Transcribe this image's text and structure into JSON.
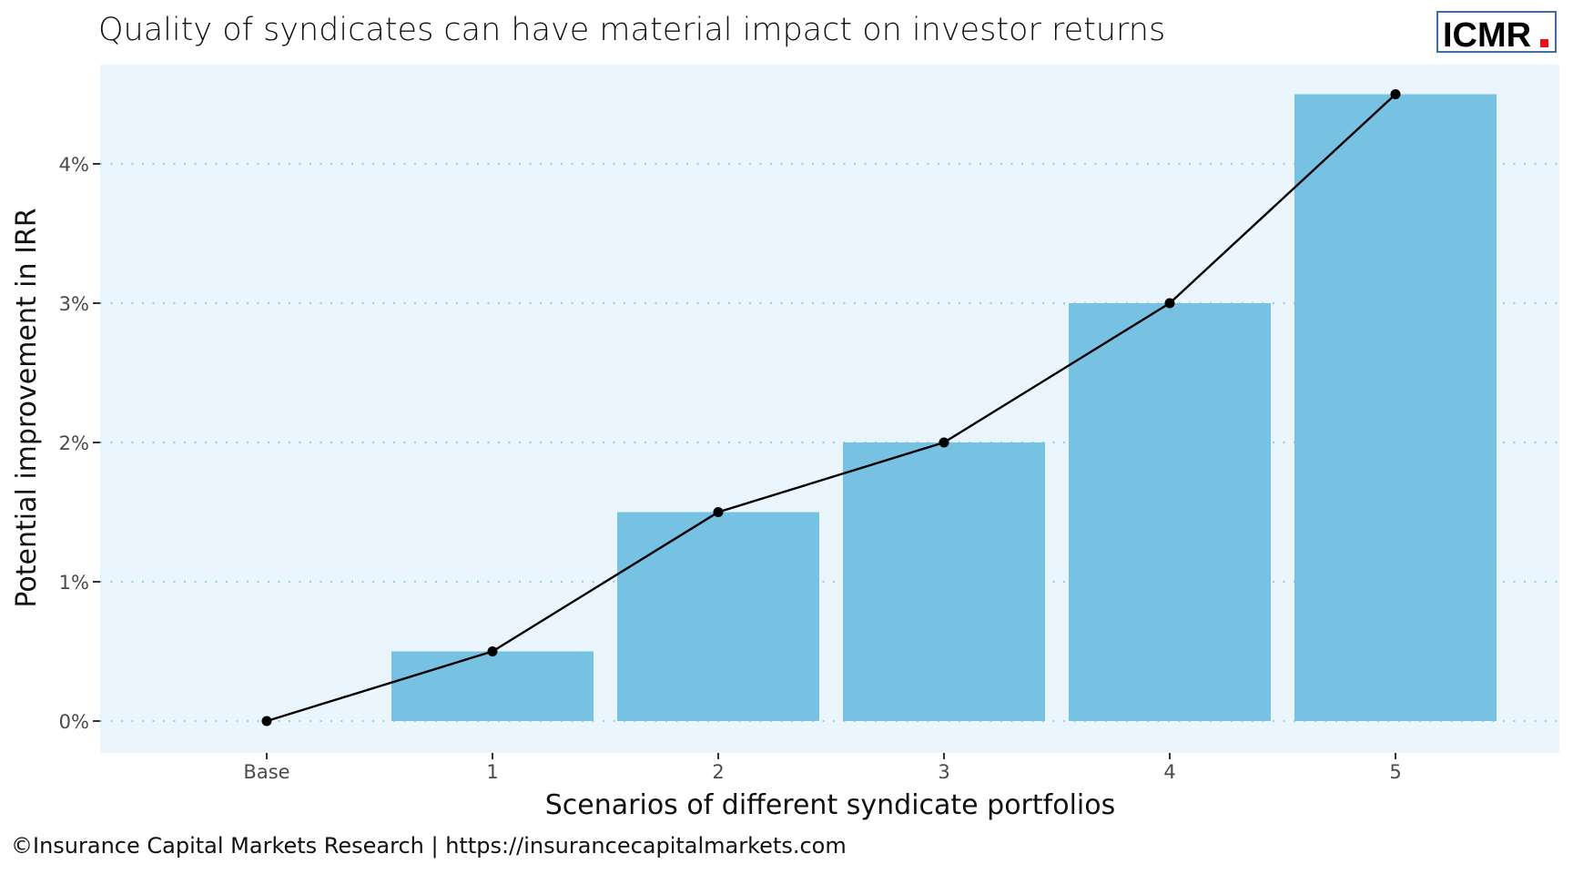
{
  "chart_data": {
    "type": "bar",
    "title": "Quality of syndicates can have material impact on investor returns",
    "xlabel": "Scenarios of different syndicate portfolios",
    "ylabel": "Potential improvement in IRR",
    "categories": [
      "Base",
      "1",
      "2",
      "3",
      "4",
      "5"
    ],
    "values": [
      0,
      0.5,
      1.5,
      2,
      3,
      4.5
    ],
    "value_unit": "%",
    "line_overlay": {
      "values": [
        0,
        0.5,
        1.5,
        2,
        3,
        4.5
      ],
      "markers": true
    },
    "yticks": [
      0,
      1,
      2,
      3,
      4
    ],
    "ytick_labels": [
      "0%",
      "1%",
      "2%",
      "3%",
      "4%"
    ],
    "ylim": [
      -0.25,
      4.7
    ],
    "grid": "horizontal-dotted",
    "legend": "none",
    "colors": {
      "bar": "#77C1E3",
      "line": "#000000",
      "panel": "#EAF5FD",
      "grid": "#9CCFE0"
    }
  },
  "logo": {
    "text": "ICMR",
    "dot": ".",
    "border_color": "#3E6EA8",
    "dot_color": "#E8101E"
  },
  "caption": "©Insurance Capital Markets Research | https://insurancecapitalmarkets.com"
}
